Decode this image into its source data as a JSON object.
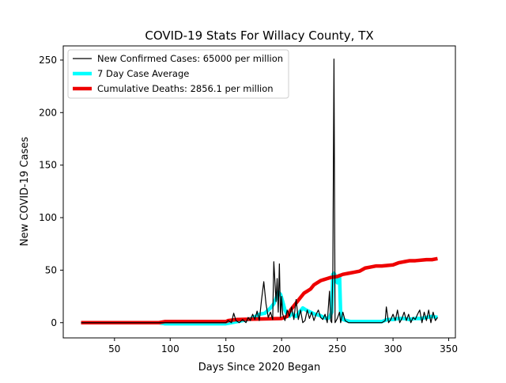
{
  "chart_data": {
    "type": "line",
    "title": "COVID-19 Stats For Willacy County, TX",
    "xlabel": "Days Since 2020 Began",
    "ylabel": "New COVID-19 Cases",
    "xlim": [
      4,
      356
    ],
    "ylim": [
      -14.5,
      263.5
    ],
    "xticks": [
      50,
      100,
      150,
      200,
      250,
      300,
      350
    ],
    "yticks": [
      0,
      50,
      100,
      150,
      200,
      250
    ],
    "legend_position": "top-left",
    "grid": false,
    "series": [
      {
        "name": "New Confirmed Cases: 65000 per million",
        "color": "#000000",
        "style": "thin",
        "x": [
          20,
          30,
          40,
          50,
          60,
          70,
          80,
          90,
          100,
          110,
          120,
          130,
          140,
          150,
          152,
          155,
          157,
          159,
          162,
          165,
          168,
          170,
          172,
          174,
          176,
          178,
          180,
          182,
          184,
          186,
          188,
          190,
          192,
          193,
          195,
          196,
          197,
          198,
          199,
          200,
          201,
          203,
          205,
          207,
          209,
          211,
          213,
          215,
          217,
          219,
          221,
          223,
          225,
          227,
          229,
          231,
          233,
          235,
          237,
          239,
          241,
          243,
          244,
          245,
          246,
          247,
          248,
          249,
          250,
          252,
          253,
          255,
          257,
          260,
          265,
          270,
          280,
          290,
          293,
          294,
          296,
          298,
          300,
          302,
          304,
          306,
          308,
          310,
          312,
          314,
          316,
          318,
          320,
          322,
          324,
          326,
          328,
          330,
          332,
          334,
          336,
          338,
          340
        ],
        "y": [
          0,
          0,
          0,
          0,
          0,
          0,
          0,
          0,
          0,
          0,
          0,
          0,
          0,
          0,
          2,
          0,
          9,
          2,
          0,
          3,
          0,
          5,
          2,
          8,
          3,
          11,
          2,
          22,
          39,
          18,
          5,
          10,
          3,
          58,
          20,
          42,
          10,
          56,
          5,
          25,
          8,
          2,
          12,
          6,
          15,
          3,
          22,
          3,
          12,
          0,
          2,
          12,
          4,
          10,
          2,
          8,
          12,
          5,
          3,
          8,
          0,
          30,
          2,
          0,
          50,
          251,
          0,
          2,
          4,
          10,
          0,
          10,
          2,
          0,
          0,
          0,
          0,
          0,
          2,
          15,
          0,
          3,
          8,
          2,
          12,
          0,
          4,
          10,
          2,
          8,
          0,
          5,
          3,
          8,
          12,
          0,
          10,
          2,
          12,
          0,
          10,
          2,
          5
        ]
      },
      {
        "name": "7 Day Case Average",
        "color": "#00ffff",
        "style": "thick",
        "x": [
          20,
          50,
          90,
          95,
          100,
          110,
          120,
          130,
          140,
          145,
          150,
          155,
          160,
          165,
          170,
          175,
          180,
          185,
          188,
          190,
          193,
          195,
          197,
          199,
          201,
          203,
          205,
          207,
          209,
          211,
          213,
          216,
          219,
          222,
          226,
          230,
          234,
          238,
          241,
          243,
          245,
          246,
          247,
          248,
          249,
          250,
          251,
          252,
          253,
          254,
          255,
          258,
          262,
          270,
          280,
          290,
          295,
          300,
          305,
          310,
          315,
          320,
          325,
          330,
          335,
          340
        ],
        "y": [
          0,
          0,
          0,
          -1,
          -1,
          -1,
          -1,
          -1,
          -1,
          -1,
          -1,
          0,
          1,
          2,
          3,
          5,
          8,
          9,
          12,
          14,
          18,
          23,
          29,
          27,
          20,
          12,
          8,
          6,
          9,
          7,
          6,
          10,
          14,
          12,
          10,
          8,
          7,
          5,
          4,
          5,
          10,
          46,
          47,
          45,
          40,
          38,
          42,
          45,
          8,
          5,
          3,
          2,
          1,
          1,
          1,
          1,
          3,
          3,
          4,
          4,
          3,
          4,
          4,
          5,
          6,
          5
        ]
      },
      {
        "name": "Cumulative Deaths: 2856.1 per million",
        "color": "#ee0000",
        "style": "thick",
        "x": [
          20,
          90,
          95,
          150,
          152,
          160,
          200,
          205,
          208,
          211,
          214,
          217,
          220,
          223,
          226,
          229,
          232,
          235,
          238,
          241,
          244,
          250,
          255,
          260,
          265,
          270,
          275,
          280,
          285,
          290,
          300,
          305,
          310,
          315,
          320,
          330,
          335,
          340
        ],
        "y": [
          0,
          0,
          1,
          1,
          2,
          3,
          4,
          6,
          12,
          16,
          20,
          24,
          28,
          30,
          32,
          36,
          38,
          40,
          41,
          42,
          43,
          44,
          46,
          47,
          48,
          49,
          52,
          53,
          54,
          54,
          55,
          57,
          58,
          59,
          59,
          60,
          60,
          61
        ]
      }
    ]
  }
}
